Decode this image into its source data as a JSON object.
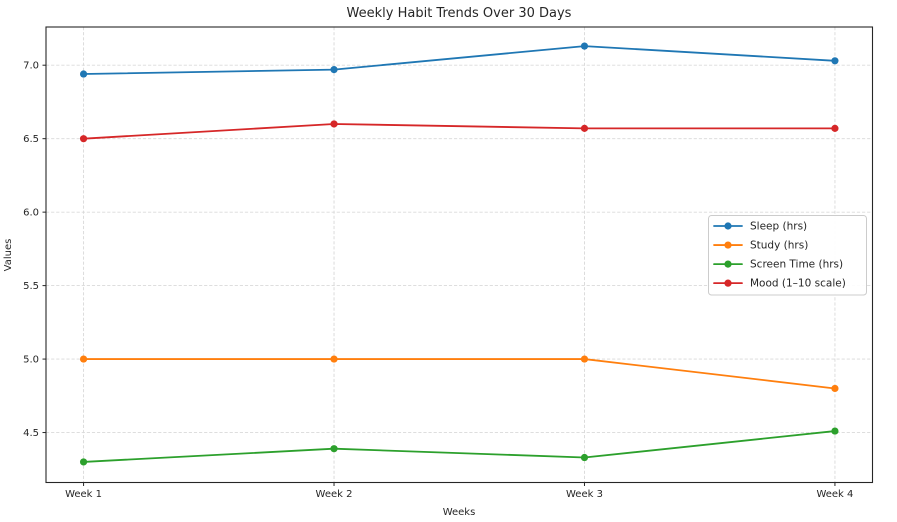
{
  "figure": {
    "background": "#ffffff"
  },
  "chart_data": {
    "type": "line",
    "title": "Weekly Habit Trends Over 30 Days",
    "xlabel": "Weeks",
    "ylabel": "Values",
    "categories": [
      "Week 1",
      "Week 2",
      "Week 3",
      "Week 4"
    ],
    "series": [
      {
        "name": "Sleep (hrs)",
        "color": "#1f77b4",
        "values": [
          6.94,
          6.97,
          7.13,
          7.03
        ]
      },
      {
        "name": "Study (hrs)",
        "color": "#ff7f0e",
        "values": [
          5.0,
          5.0,
          5.0,
          4.8
        ]
      },
      {
        "name": "Screen Time (hrs)",
        "color": "#2ca02c",
        "values": [
          4.3,
          4.39,
          4.33,
          4.51
        ]
      },
      {
        "name": "Mood (1–10 scale)",
        "color": "#d62728",
        "values": [
          6.5,
          6.6,
          6.57,
          6.57
        ]
      }
    ],
    "yticks": [
      4.5,
      5.0,
      5.5,
      6.0,
      6.5,
      7.0
    ],
    "ytick_labels": [
      "4.5",
      "5.0",
      "5.5",
      "6.0",
      "6.5",
      "7.0"
    ],
    "ylim": [
      4.16,
      7.26
    ],
    "xlim": [
      -0.15,
      3.15
    ],
    "grid": true,
    "grid_style": "dashed",
    "grid_color": "#d9d9d9",
    "axis_color": "#262626",
    "legend_position": "center right",
    "marker": "circle"
  }
}
